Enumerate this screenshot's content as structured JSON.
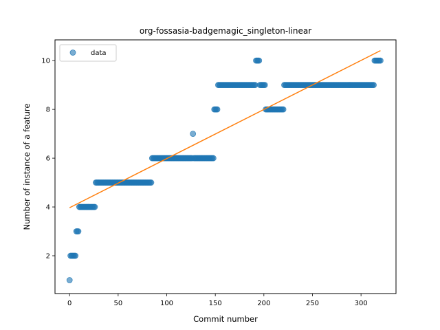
{
  "chart_data": {
    "type": "scatter",
    "title": "org-fossasia-badgemagic_singleton-linear",
    "xlabel": "Commit number",
    "ylabel": "Number of instance of a feature",
    "xlim": [
      -15,
      336
    ],
    "ylim": [
      0.45,
      10.85
    ],
    "xticks": [
      0,
      50,
      100,
      150,
      200,
      250,
      300
    ],
    "yticks": [
      2,
      4,
      6,
      8,
      10
    ],
    "grid": false,
    "legend": {
      "position": "top-left",
      "entries": [
        "data"
      ]
    },
    "colors": {
      "scatter": "#1f77b4",
      "line": "#ff7f0e"
    },
    "series": [
      {
        "name": "data",
        "kind": "scatter",
        "segments": [
          {
            "x_start": 0,
            "x_end": 0,
            "y": 1
          },
          {
            "x_start": 1,
            "x_end": 6,
            "y": 2
          },
          {
            "x_start": 7,
            "x_end": 9,
            "y": 3
          },
          {
            "x_start": 10,
            "x_end": 26,
            "y": 4
          },
          {
            "x_start": 27,
            "x_end": 84,
            "y": 5
          },
          {
            "x_start": 85,
            "x_end": 126,
            "y": 6
          },
          {
            "x_start": 127,
            "x_end": 127,
            "y": 7
          },
          {
            "x_start": 128,
            "x_end": 148,
            "y": 6
          },
          {
            "x_start": 149,
            "x_end": 152,
            "y": 8
          },
          {
            "x_start": 153,
            "x_end": 191,
            "y": 9
          },
          {
            "x_start": 192,
            "x_end": 195,
            "y": 10
          },
          {
            "x_start": 196,
            "x_end": 201,
            "y": 9
          },
          {
            "x_start": 202,
            "x_end": 220,
            "y": 8
          },
          {
            "x_start": 221,
            "x_end": 313,
            "y": 9
          },
          {
            "x_start": 314,
            "x_end": 320,
            "y": 10
          }
        ]
      },
      {
        "name": "",
        "kind": "line",
        "x": [
          0,
          320
        ],
        "y": [
          3.97,
          10.41
        ]
      }
    ]
  }
}
